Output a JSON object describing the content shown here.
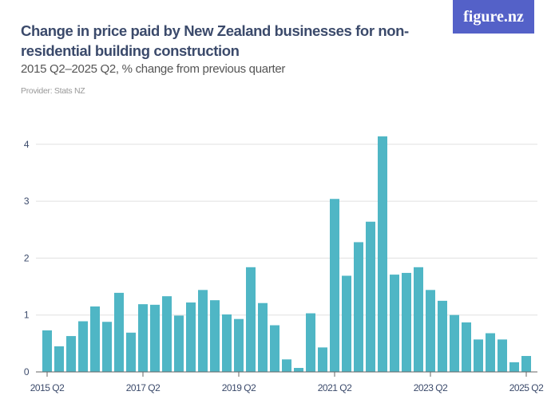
{
  "header": {
    "title": "Change in price paid by New Zealand businesses for non-residential building construction",
    "subtitle": "2015 Q2–2025 Q2, % change from previous quarter",
    "provider": "Provider: Stats NZ",
    "logo": "figure.nz"
  },
  "colors": {
    "bar": "#4fb6c5",
    "text": "#3b4a6b",
    "grid": "#e0e0e0",
    "logo_bg": "#5461c8"
  },
  "chart_data": {
    "type": "bar",
    "title": "Change in price paid by New Zealand businesses for non-residential building construction",
    "subtitle": "2015 Q2–2025 Q2, % change from previous quarter",
    "categories": [
      "2015 Q2",
      "2015 Q3",
      "2015 Q4",
      "2016 Q1",
      "2016 Q2",
      "2016 Q3",
      "2016 Q4",
      "2017 Q1",
      "2017 Q2",
      "2017 Q3",
      "2017 Q4",
      "2018 Q1",
      "2018 Q2",
      "2018 Q3",
      "2018 Q4",
      "2019 Q1",
      "2019 Q2",
      "2019 Q3",
      "2019 Q4",
      "2020 Q1",
      "2020 Q2",
      "2020 Q3",
      "2020 Q4",
      "2021 Q1",
      "2021 Q2",
      "2021 Q3",
      "2021 Q4",
      "2022 Q1",
      "2022 Q2",
      "2022 Q3",
      "2022 Q4",
      "2023 Q1",
      "2023 Q2",
      "2023 Q3",
      "2023 Q4",
      "2024 Q1",
      "2024 Q2",
      "2024 Q3",
      "2024 Q4",
      "2025 Q1",
      "2025 Q2"
    ],
    "values": [
      0.73,
      0.45,
      0.63,
      0.89,
      1.15,
      0.88,
      1.39,
      0.69,
      1.19,
      1.18,
      1.33,
      0.99,
      1.22,
      1.44,
      1.26,
      1.01,
      0.93,
      1.84,
      1.21,
      0.82,
      0.22,
      0.07,
      1.03,
      0.43,
      3.04,
      1.69,
      2.28,
      2.64,
      4.14,
      1.71,
      1.74,
      1.84,
      1.44,
      1.25,
      1.0,
      0.87,
      0.57,
      0.68,
      0.57,
      0.17,
      0.28
    ],
    "x_tick_labels": [
      "2015 Q2",
      "2017 Q2",
      "2019 Q2",
      "2021 Q2",
      "2023 Q2",
      "2025 Q2"
    ],
    "y_ticks": [
      0,
      1,
      2,
      3,
      4
    ],
    "ylim": [
      0,
      4.2
    ],
    "xlabel": "",
    "ylabel": "",
    "grid": true,
    "legend": "none"
  }
}
